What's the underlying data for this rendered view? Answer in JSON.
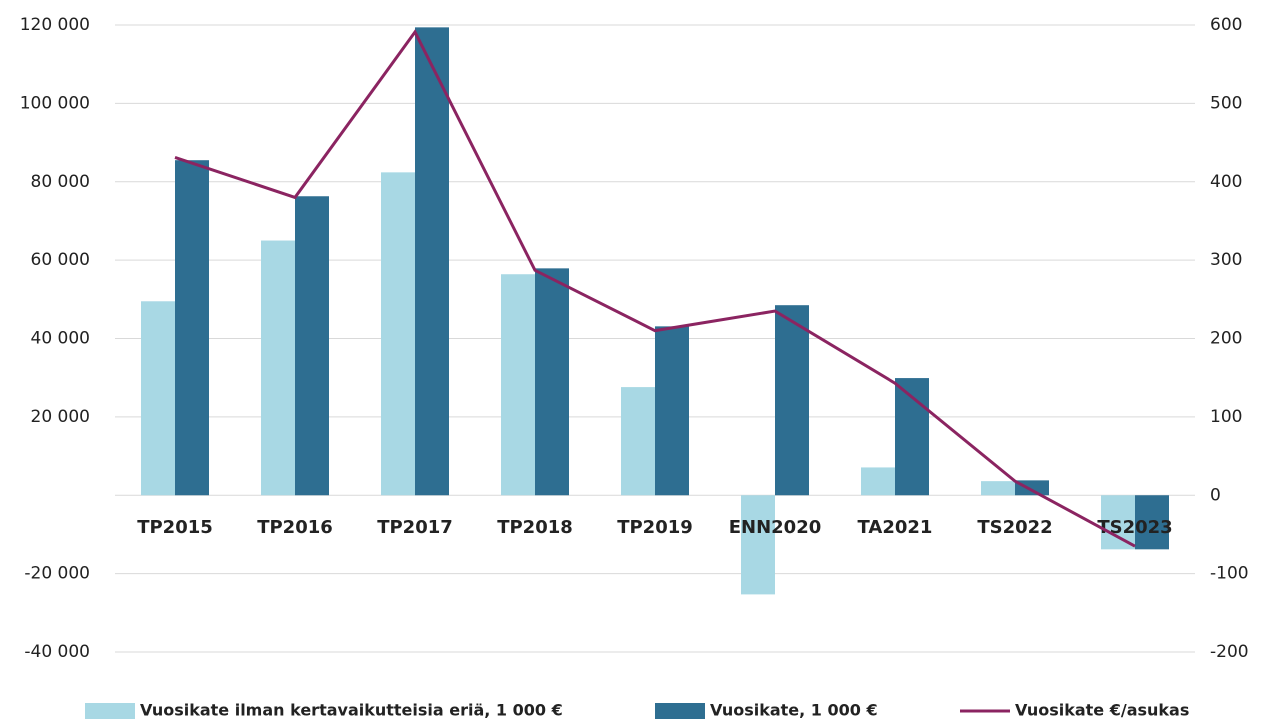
{
  "chart_data": {
    "type": "bar",
    "categories": [
      "TP2015",
      "TP2016",
      "TP2017",
      "TP2018",
      "TP2019",
      "ENN2020",
      "TA2021",
      "TS2022",
      "TS2023"
    ],
    "series": [
      {
        "name": "Vuosikate ilman kertavaikutteisia eriä, 1 000 €",
        "color": "#a8d8e4",
        "values": [
          49500,
          65000,
          82400,
          56400,
          27600,
          -25300,
          7100,
          3600,
          -13800
        ]
      },
      {
        "name": "Vuosikate, 1 000 €",
        "color": "#2e6e91",
        "values": [
          85500,
          76300,
          119400,
          57900,
          43100,
          48500,
          29900,
          3800,
          -13800
        ]
      },
      {
        "name": "Vuosikate €/asukas",
        "color": "#8b2461",
        "type": "line",
        "axis": "y2",
        "values": [
          431,
          380,
          591,
          287,
          210,
          235,
          143,
          18,
          -65
        ]
      }
    ],
    "ylim": [
      -40000,
      120000
    ],
    "yticks": [
      {
        "value": -40000,
        "label": "-40 000"
      },
      {
        "value": -20000,
        "label": "-20 000"
      },
      {
        "value": 20000,
        "label": "20 000"
      },
      {
        "value": 40000,
        "label": "40 000"
      },
      {
        "value": 60000,
        "label": "60 000"
      },
      {
        "value": 80000,
        "label": "80 000"
      },
      {
        "value": 100000,
        "label": "100 000"
      },
      {
        "value": 120000,
        "label": "120 000"
      }
    ],
    "y2lim": [
      -200,
      600
    ],
    "y2ticks": [
      -200,
      -100,
      0,
      100,
      200,
      300,
      400,
      500,
      600
    ],
    "grid": true,
    "legend": "bottom"
  }
}
